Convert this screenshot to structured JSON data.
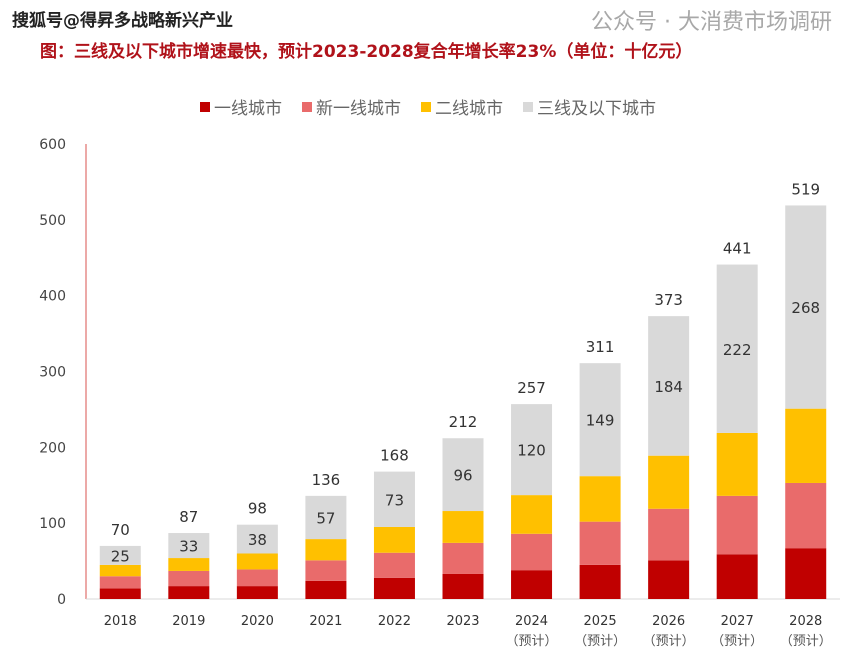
{
  "watermark_top": "搜狐号@得昇多战略新兴产业",
  "watermark_bottom": "公众号 · 大消费市场调研",
  "chart_data": {
    "type": "bar",
    "stacked": true,
    "title": "图：三线及以下城市增速最快，预计2023-2028复合年增长率23%（单位：十亿元）",
    "categories": [
      "2018",
      "2019",
      "2020",
      "2021",
      "2022",
      "2023",
      "2024",
      "2025",
      "2026",
      "2027",
      "2028"
    ],
    "category_sublabels": [
      "",
      "",
      "",
      "",
      "",
      "",
      "（预计）",
      "（预计）",
      "（预计）",
      "（预计）",
      "（预计）"
    ],
    "series": [
      {
        "name": "一线城市",
        "color": "#c00000",
        "values": [
          14,
          17,
          17,
          24,
          28,
          33,
          38,
          45,
          51,
          59,
          67
        ]
      },
      {
        "name": "新一线城市",
        "color": "#e96b6b",
        "values": [
          16,
          20,
          22,
          27,
          33,
          41,
          48,
          57,
          68,
          77,
          86
        ]
      },
      {
        "name": "二线城市",
        "color": "#ffc000",
        "values": [
          15,
          17,
          21,
          28,
          34,
          42,
          51,
          60,
          70,
          83,
          98
        ]
      },
      {
        "name": "三线及以下城市",
        "color": "#d9d9d9",
        "values": [
          25,
          33,
          38,
          57,
          73,
          96,
          120,
          149,
          184,
          222,
          268
        ]
      }
    ],
    "totals": [
      70,
      87,
      98,
      136,
      168,
      212,
      257,
      311,
      373,
      441,
      519
    ],
    "labeled_series": "三线及以下城市",
    "ylim": [
      0,
      600
    ],
    "yticks": [
      0,
      100,
      200,
      300,
      400,
      500,
      600
    ],
    "legend_position": "top",
    "grid": false,
    "xlabel": "",
    "ylabel": ""
  }
}
